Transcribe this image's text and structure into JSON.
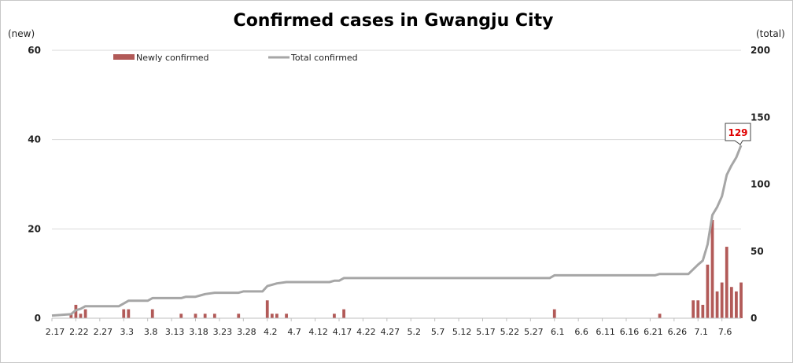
{
  "chart_data": {
    "type": "bar+line",
    "title": "Confirmed cases in Gwangju City",
    "y_left_label": "(new)",
    "y_right_label": "(total)",
    "y_left_range": [
      0,
      60
    ],
    "y_left_ticks": [
      0,
      20,
      40,
      60
    ],
    "y_right_range": [
      0,
      200
    ],
    "y_right_ticks": [
      0,
      50,
      100,
      150,
      200
    ],
    "start_date": "2020-02-17",
    "num_days": 144,
    "x_tick_labels": [
      "2.17",
      "2.22",
      "2.27",
      "3.3",
      "3.8",
      "3.13",
      "3.18",
      "3.23",
      "3.28",
      "4.2",
      "4.7",
      "4.12",
      "4.17",
      "4.22",
      "4.27",
      "5.2",
      "5.7",
      "5.12",
      "5.17",
      "5.22",
      "5.27",
      "6.1",
      "6.6",
      "6.11",
      "6.16",
      "6.21",
      "6.26",
      "7.1",
      "7.6"
    ],
    "x_tick_every_days": 5,
    "legend": [
      {
        "name": "Newly confirmed",
        "type": "bar",
        "color": "#b25a58"
      },
      {
        "name": "Total confirmed",
        "type": "line",
        "color": "#a6a6a6"
      }
    ],
    "series": [
      {
        "name": "Newly confirmed",
        "axis": "left",
        "points": [
          {
            "day": 4,
            "value": 1
          },
          {
            "day": 5,
            "value": 3
          },
          {
            "day": 6,
            "value": 1
          },
          {
            "day": 7,
            "value": 2
          },
          {
            "day": 15,
            "value": 2
          },
          {
            "day": 16,
            "value": 2
          },
          {
            "day": 21,
            "value": 2
          },
          {
            "day": 27,
            "value": 1
          },
          {
            "day": 30,
            "value": 1
          },
          {
            "day": 32,
            "value": 1
          },
          {
            "day": 34,
            "value": 1
          },
          {
            "day": 39,
            "value": 1
          },
          {
            "day": 45,
            "value": 4
          },
          {
            "day": 46,
            "value": 1
          },
          {
            "day": 47,
            "value": 1
          },
          {
            "day": 49,
            "value": 1
          },
          {
            "day": 59,
            "value": 1
          },
          {
            "day": 61,
            "value": 2
          },
          {
            "day": 105,
            "value": 2
          },
          {
            "day": 127,
            "value": 1
          },
          {
            "day": 134,
            "value": 4
          },
          {
            "day": 135,
            "value": 4
          },
          {
            "day": 136,
            "value": 3
          },
          {
            "day": 137,
            "value": 12
          },
          {
            "day": 138,
            "value": 22
          },
          {
            "day": 139,
            "value": 6
          },
          {
            "day": 140,
            "value": 8
          },
          {
            "day": 141,
            "value": 16
          },
          {
            "day": 142,
            "value": 7
          },
          {
            "day": 143,
            "value": 6
          },
          {
            "day": 144,
            "value": 8
          }
        ]
      },
      {
        "name": "Total confirmed",
        "axis": "right",
        "points": [
          {
            "day": 0,
            "value": 2
          },
          {
            "day": 4,
            "value": 3
          },
          {
            "day": 5,
            "value": 6
          },
          {
            "day": 6,
            "value": 7
          },
          {
            "day": 7,
            "value": 9
          },
          {
            "day": 14,
            "value": 9
          },
          {
            "day": 16,
            "value": 13
          },
          {
            "day": 20,
            "value": 13
          },
          {
            "day": 21,
            "value": 15
          },
          {
            "day": 27,
            "value": 15
          },
          {
            "day": 28,
            "value": 16
          },
          {
            "day": 30,
            "value": 16
          },
          {
            "day": 31,
            "value": 17
          },
          {
            "day": 32,
            "value": 18
          },
          {
            "day": 34,
            "value": 19
          },
          {
            "day": 39,
            "value": 19
          },
          {
            "day": 40,
            "value": 20
          },
          {
            "day": 44,
            "value": 20
          },
          {
            "day": 45,
            "value": 24
          },
          {
            "day": 46,
            "value": 25
          },
          {
            "day": 47,
            "value": 26
          },
          {
            "day": 49,
            "value": 27
          },
          {
            "day": 58,
            "value": 27
          },
          {
            "day": 59,
            "value": 28
          },
          {
            "day": 60,
            "value": 28
          },
          {
            "day": 61,
            "value": 30
          },
          {
            "day": 104,
            "value": 30
          },
          {
            "day": 105,
            "value": 32
          },
          {
            "day": 126,
            "value": 32
          },
          {
            "day": 127,
            "value": 33
          },
          {
            "day": 133,
            "value": 33
          },
          {
            "day": 135,
            "value": 40
          },
          {
            "day": 136,
            "value": 43
          },
          {
            "day": 137,
            "value": 55
          },
          {
            "day": 138,
            "value": 77
          },
          {
            "day": 139,
            "value": 83
          },
          {
            "day": 140,
            "value": 91
          },
          {
            "day": 141,
            "value": 107
          },
          {
            "day": 142,
            "value": 114
          },
          {
            "day": 143,
            "value": 120
          },
          {
            "day": 144,
            "value": 129
          }
        ]
      }
    ],
    "annotation": {
      "text": "129",
      "series": "Total confirmed",
      "day": 144,
      "value": 129,
      "color": "#e00000"
    }
  }
}
